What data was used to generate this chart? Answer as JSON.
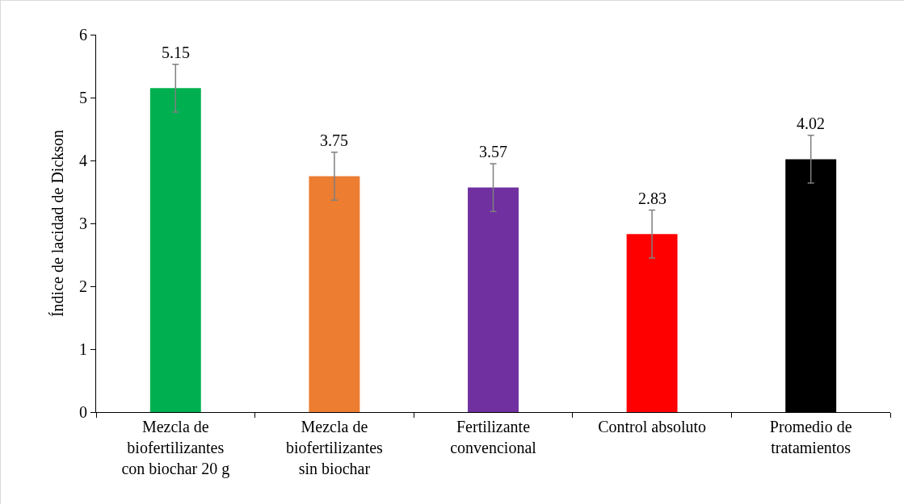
{
  "chart_data": {
    "type": "bar",
    "ylabel": "Índice de lacidad de Dickson",
    "categories": [
      "Mezcla de biofertilizantes con biochar 20 g",
      "Mezcla de biofertilizantes sin biochar",
      "Fertilizante convencional",
      "Control absoluto",
      "Promedio de tratamientos"
    ],
    "values": [
      5.15,
      3.75,
      3.57,
      2.83,
      4.02
    ],
    "colors": [
      "#00b050",
      "#ed7d31",
      "#7030a0",
      "#ff0000",
      "#000000"
    ],
    "errors": [
      0.38,
      0.38,
      0.38,
      0.38,
      0.38
    ],
    "data_labels": true,
    "ylim": [
      0,
      6
    ],
    "yticks": [
      0,
      1,
      2,
      3,
      4,
      5,
      6
    ]
  }
}
